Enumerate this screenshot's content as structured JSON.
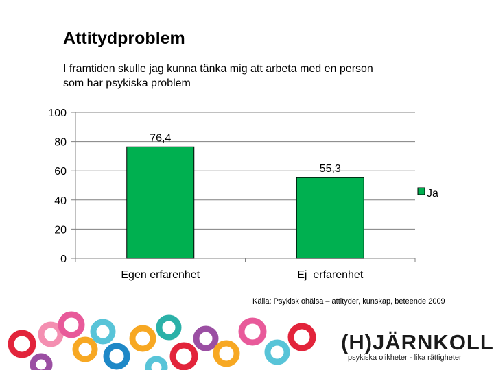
{
  "slide": {
    "title": "Attitydproblem",
    "subtitle": "I framtiden skulle jag kunna tänka mig att arbeta med en person som har psykiska problem",
    "source": "Källa: Psykisk ohälsa – attityder, kunskap, beteende 2009"
  },
  "logo": {
    "name": "(H)JÄRNKOLL",
    "tagline": "psykiska olikheter - lika rättigheter"
  },
  "chart_data": {
    "type": "bar",
    "categories": [
      "Egen erfarenhet",
      "Ej  erfarenhet"
    ],
    "series": [
      {
        "name": "Ja",
        "values": [
          76.4,
          55.3
        ],
        "labels": [
          "76,4",
          "55,3"
        ],
        "color": "#00b050"
      }
    ],
    "ylim": [
      0,
      100
    ],
    "yticks": [
      0,
      20,
      40,
      60,
      80,
      100
    ],
    "grid": true,
    "legend": "right",
    "grid_color": "#808080"
  }
}
